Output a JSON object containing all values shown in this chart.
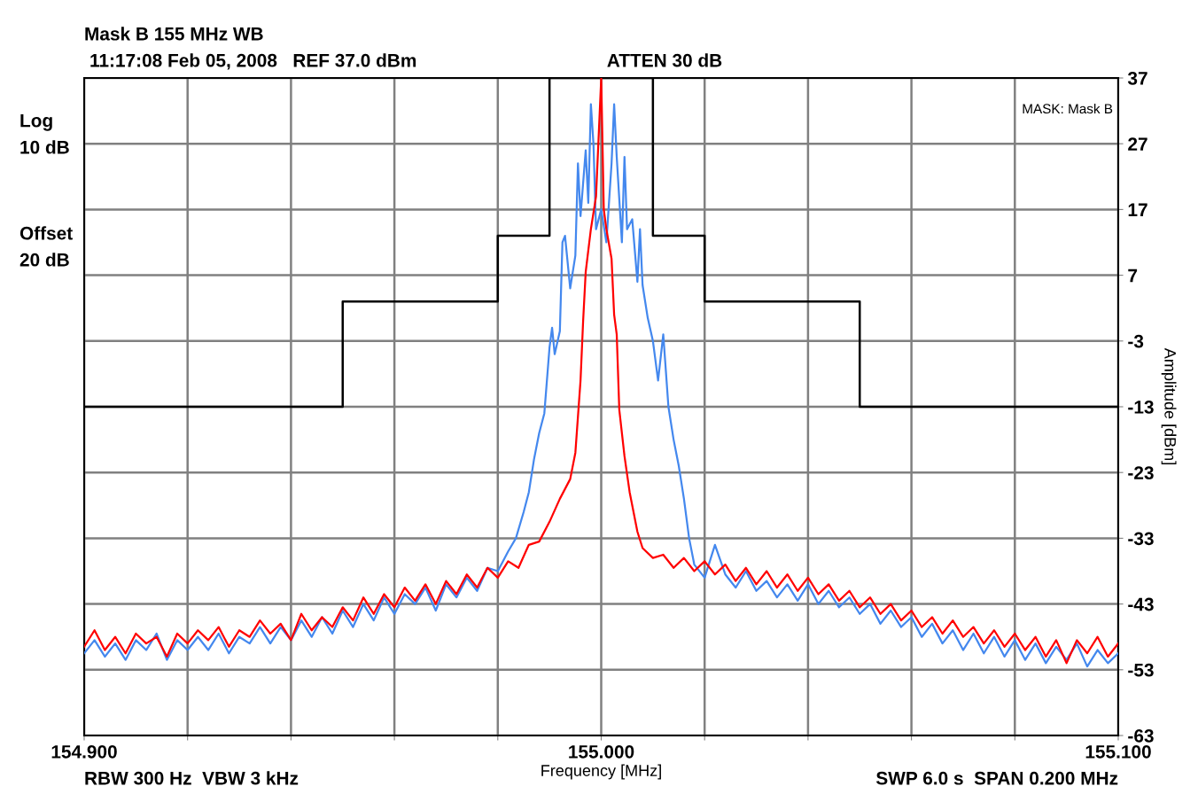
{
  "chart_data": {
    "type": "line",
    "title": "Mask B 155 MHz WB",
    "subtitle": "11:17:08 Feb 05, 2008   REF 37.0 dBm",
    "xlabel": "Frequency [MHz]",
    "ylabel": "Amplitude [dBm]",
    "annotations": [
      "ATTEN 30 dB",
      "Log",
      "10 dB",
      "Offset",
      "20 dB",
      "MASK: Mask B",
      "RBW 300 Hz  VBW 3 kHz",
      "SWP 6.0 s  SPAN 0.200 MHz"
    ],
    "xlim": [
      154.9,
      155.1
    ],
    "xticks": [
      {
        "value": 154.9,
        "label": "154.900"
      },
      {
        "value": 154.92,
        "label": null
      },
      {
        "value": 154.94,
        "label": null
      },
      {
        "value": 154.96,
        "label": null
      },
      {
        "value": 154.98,
        "label": null
      },
      {
        "value": 155.0,
        "label": "155.000"
      },
      {
        "value": 155.02,
        "label": null
      },
      {
        "value": 155.04,
        "label": null
      },
      {
        "value": 155.06,
        "label": null
      },
      {
        "value": 155.08,
        "label": null
      },
      {
        "value": 155.1,
        "label": "155.100"
      }
    ],
    "ylim": [
      -63,
      37
    ],
    "yticks": [
      37,
      27,
      17,
      7,
      -3,
      -13,
      -23,
      -33,
      -43,
      -53,
      -63
    ],
    "grid": true,
    "legend": false,
    "marker": "none",
    "line_style": "solid",
    "series": [
      {
        "type": "step",
        "color": "#000000",
        "x": [
          154.9,
          154.95,
          154.98,
          154.99,
          155.01,
          155.02,
          155.05,
          155.1
        ],
        "values": [
          -13,
          3,
          13,
          37,
          13,
          3,
          -13,
          -13
        ]
      },
      {
        "color": "#4488ee",
        "x": [
          154.9,
          154.902,
          154.904,
          154.906,
          154.908,
          154.91,
          154.912,
          154.914,
          154.916,
          154.918,
          154.92,
          154.922,
          154.924,
          154.926,
          154.928,
          154.93,
          154.932,
          154.934,
          154.936,
          154.938,
          154.94,
          154.942,
          154.944,
          154.946,
          154.948,
          154.95,
          154.952,
          154.954,
          154.956,
          154.958,
          154.96,
          154.962,
          154.964,
          154.966,
          154.968,
          154.97,
          154.972,
          154.974,
          154.976,
          154.978,
          154.98,
          154.982,
          154.9835,
          154.985,
          154.986,
          154.987,
          154.988,
          154.989,
          154.99,
          154.9905,
          154.991,
          154.992,
          154.9925,
          154.993,
          154.994,
          154.995,
          154.9955,
          154.996,
          154.997,
          154.9975,
          154.998,
          154.9985,
          154.999,
          155.0,
          155.001,
          155.002,
          155.0025,
          155.003,
          155.004,
          155.0045,
          155.005,
          155.006,
          155.007,
          155.0075,
          155.008,
          155.009,
          155.01,
          155.011,
          155.012,
          155.013,
          155.014,
          155.015,
          155.016,
          155.017,
          155.018,
          155.02,
          155.022,
          155.024,
          155.026,
          155.028,
          155.03,
          155.032,
          155.034,
          155.036,
          155.038,
          155.04,
          155.042,
          155.044,
          155.046,
          155.048,
          155.05,
          155.052,
          155.054,
          155.056,
          155.058,
          155.06,
          155.062,
          155.064,
          155.066,
          155.068,
          155.07,
          155.072,
          155.074,
          155.076,
          155.078,
          155.08,
          155.082,
          155.084,
          155.086,
          155.088,
          155.09,
          155.092,
          155.094,
          155.096,
          155.098,
          155.1
        ],
        "values": [
          -50.5,
          -48.5,
          -51,
          -49,
          -51.5,
          -48.5,
          -50,
          -47.5,
          -51.5,
          -48.5,
          -50,
          -48,
          -50,
          -47.5,
          -50.5,
          -48,
          -49,
          -46.5,
          -49,
          -46.5,
          -48.5,
          -45.5,
          -48,
          -45,
          -47.5,
          -44,
          -46.5,
          -43,
          -45.5,
          -42,
          -44.5,
          -41.5,
          -43,
          -40.5,
          -44,
          -40,
          -42,
          -39,
          -41,
          -37.5,
          -38,
          -35,
          -33,
          -29,
          -26,
          -21,
          -17,
          -14,
          -4,
          -1,
          -5,
          -1.5,
          12,
          13,
          5,
          10,
          24,
          16,
          26,
          18,
          33,
          27,
          14,
          17,
          12,
          24,
          33,
          25,
          12,
          25,
          14,
          15.5,
          6,
          14,
          5.5,
          0.5,
          -3,
          -9,
          -2,
          -13,
          -18,
          -22,
          -27,
          -33,
          -37,
          -39,
          -34,
          -38.5,
          -40.5,
          -38,
          -41,
          -39.5,
          -42,
          -40,
          -42.5,
          -40,
          -43,
          -41,
          -43.5,
          -42,
          -44.5,
          -43,
          -46,
          -44,
          -46.5,
          -45,
          -48,
          -46,
          -49,
          -47,
          -50,
          -47.5,
          -50.5,
          -48,
          -51,
          -48.5,
          -51.5,
          -49,
          -52,
          -49.5,
          -51.5,
          -49,
          -52.5,
          -50,
          -52,
          -50.5
        ]
      },
      {
        "color": "#ff0000",
        "x": [
          154.9,
          154.902,
          154.904,
          154.906,
          154.908,
          154.91,
          154.912,
          154.914,
          154.916,
          154.918,
          154.92,
          154.922,
          154.924,
          154.926,
          154.928,
          154.93,
          154.932,
          154.934,
          154.936,
          154.938,
          154.94,
          154.942,
          154.944,
          154.946,
          154.948,
          154.95,
          154.952,
          154.954,
          154.956,
          154.958,
          154.96,
          154.962,
          154.964,
          154.966,
          154.968,
          154.97,
          154.972,
          154.974,
          154.976,
          154.978,
          154.98,
          154.982,
          154.984,
          154.986,
          154.988,
          154.99,
          154.992,
          154.994,
          154.995,
          154.996,
          154.9965,
          154.997,
          154.998,
          154.999,
          155.0,
          155.0005,
          155.001,
          155.002,
          155.0025,
          155.003,
          155.0035,
          155.0045,
          155.0055,
          155.007,
          155.008,
          155.01,
          155.012,
          155.014,
          155.016,
          155.018,
          155.02,
          155.022,
          155.024,
          155.026,
          155.028,
          155.03,
          155.032,
          155.034,
          155.036,
          155.038,
          155.04,
          155.042,
          155.044,
          155.046,
          155.048,
          155.05,
          155.052,
          155.054,
          155.056,
          155.058,
          155.06,
          155.062,
          155.064,
          155.066,
          155.068,
          155.07,
          155.072,
          155.074,
          155.076,
          155.078,
          155.08,
          155.082,
          155.084,
          155.086,
          155.088,
          155.09,
          155.092,
          155.094,
          155.096,
          155.098,
          155.1
        ],
        "values": [
          -49.5,
          -47,
          -50,
          -48,
          -50.5,
          -47.5,
          -49,
          -48,
          -51,
          -47.5,
          -49,
          -47,
          -48.5,
          -46.5,
          -49.5,
          -47,
          -48,
          -45.5,
          -47.5,
          -46,
          -48.5,
          -44.5,
          -47,
          -45,
          -46.5,
          -43.5,
          -45.5,
          -42,
          -44.5,
          -41.5,
          -43.5,
          -40.5,
          -42.5,
          -40,
          -43,
          -39.5,
          -41.5,
          -38.5,
          -40.5,
          -37.5,
          -39,
          -36.5,
          -37.5,
          -34,
          -33.5,
          -30.5,
          -27,
          -24,
          -20,
          -9,
          0,
          7.5,
          14,
          19,
          37,
          17,
          14,
          9.5,
          1,
          -2,
          -13.5,
          -20.5,
          -26,
          -32,
          -34.5,
          -36,
          -35.5,
          -37.5,
          -36,
          -38,
          -36.5,
          -38.5,
          -37,
          -39.5,
          -37.5,
          -40,
          -38,
          -40.5,
          -38.5,
          -41,
          -39,
          -41.5,
          -40,
          -42.5,
          -41,
          -43.5,
          -42,
          -44.5,
          -43,
          -45.5,
          -44,
          -46.5,
          -45,
          -47.5,
          -45.5,
          -48,
          -46.5,
          -49,
          -47,
          -49.5,
          -47.5,
          -50,
          -48,
          -51,
          -48.5,
          -52,
          -48.5,
          -50.5,
          -48,
          -51,
          -49
        ]
      }
    ]
  }
}
